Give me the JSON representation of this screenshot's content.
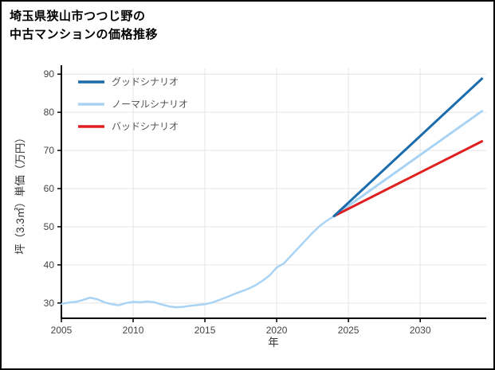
{
  "title": {
    "line1": "埼玉県狭山市つつじ野の",
    "line2": "中古マンションの価格推移"
  },
  "chart_data": {
    "type": "line",
    "title": "埼玉県狭山市つつじ野の中古マンションの価格推移",
    "xlabel": "年",
    "ylabel": "坪（3.3㎡）単価（万円）",
    "x_range": [
      2005,
      2034.6
    ],
    "y_range": [
      26,
      91.5
    ],
    "x_ticks": [
      2005,
      2010,
      2015,
      2020,
      2025,
      2030
    ],
    "y_ticks": [
      30,
      40,
      50,
      60,
      70,
      80,
      90
    ],
    "grid": true,
    "grid_color": "#e5e5e5",
    "axis_color": "#000000",
    "legend_position": "top-left",
    "legend": [
      {
        "label": "グッドシナリオ",
        "color": "#1a6cad"
      },
      {
        "label": "ノーマルシナリオ",
        "color": "#a9d3f4"
      },
      {
        "label": "バッドシナリオ",
        "color": "#e02020"
      }
    ],
    "series": [
      {
        "id": "historical",
        "color": "#a9d3f4",
        "width": 2.5,
        "x": [
          2005,
          2005.5,
          2006,
          2006.5,
          2007,
          2007.5,
          2008,
          2008.5,
          2009,
          2009.5,
          2010,
          2010.5,
          2011,
          2011.5,
          2012,
          2012.5,
          2013,
          2013.5,
          2014,
          2014.5,
          2015,
          2015.5,
          2016,
          2016.5,
          2017,
          2017.5,
          2018,
          2018.5,
          2019,
          2019.5,
          2020,
          2020.5,
          2021,
          2021.5,
          2022,
          2022.5,
          2023,
          2023.5,
          2024
        ],
        "values": [
          29.8,
          30.1,
          30.3,
          30.8,
          31.4,
          31.0,
          30.2,
          29.7,
          29.4,
          30.0,
          30.3,
          30.2,
          30.4,
          30.2,
          29.6,
          29.1,
          28.9,
          29.0,
          29.3,
          29.5,
          29.7,
          30.1,
          30.8,
          31.5,
          32.3,
          33.0,
          33.7,
          34.6,
          35.8,
          37.2,
          39.3,
          40.4,
          42.4,
          44.4,
          46.4,
          48.4,
          50.2,
          51.6,
          52.8
        ]
      },
      {
        "id": "normal-scenario",
        "color": "#a9d3f4",
        "width": 3,
        "x": [
          2024,
          2034.3
        ],
        "values": [
          52.8,
          80.3
        ]
      },
      {
        "id": "bad-scenario",
        "color": "#e02020",
        "width": 3,
        "x": [
          2024,
          2034.3
        ],
        "values": [
          52.8,
          72.4
        ]
      },
      {
        "id": "good-scenario",
        "color": "#1a6cad",
        "width": 3,
        "x": [
          2024,
          2034.3
        ],
        "values": [
          52.8,
          88.8
        ]
      }
    ]
  }
}
